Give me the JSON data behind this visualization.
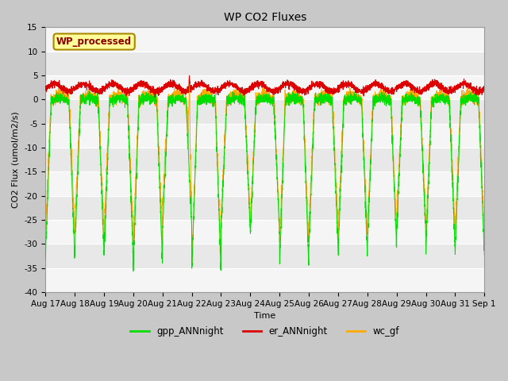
{
  "title": "WP CO2 Fluxes",
  "xlabel": "Time",
  "ylabel_text": "CO2 Flux (umol/m2/s)",
  "ylim": [
    -40,
    15
  ],
  "yticks": [
    -40,
    -35,
    -30,
    -25,
    -20,
    -15,
    -10,
    -5,
    0,
    5,
    10,
    15
  ],
  "bg_color": "#c8c8c8",
  "plot_bg": "#e8e8e8",
  "band_color": "#ffffff",
  "line_green": "#00dd00",
  "line_red": "#dd0000",
  "line_orange": "#ffaa00",
  "legend_label": "WP_processed",
  "legend_text_color": "#8b0000",
  "legend_bg": "#ffff99",
  "legend_edge": "#aa8800",
  "n_points": 4320,
  "fig_width": 6.4,
  "fig_height": 4.8,
  "dpi": 100,
  "title_fontsize": 10,
  "axis_fontsize": 8,
  "tick_fontsize": 7.5
}
